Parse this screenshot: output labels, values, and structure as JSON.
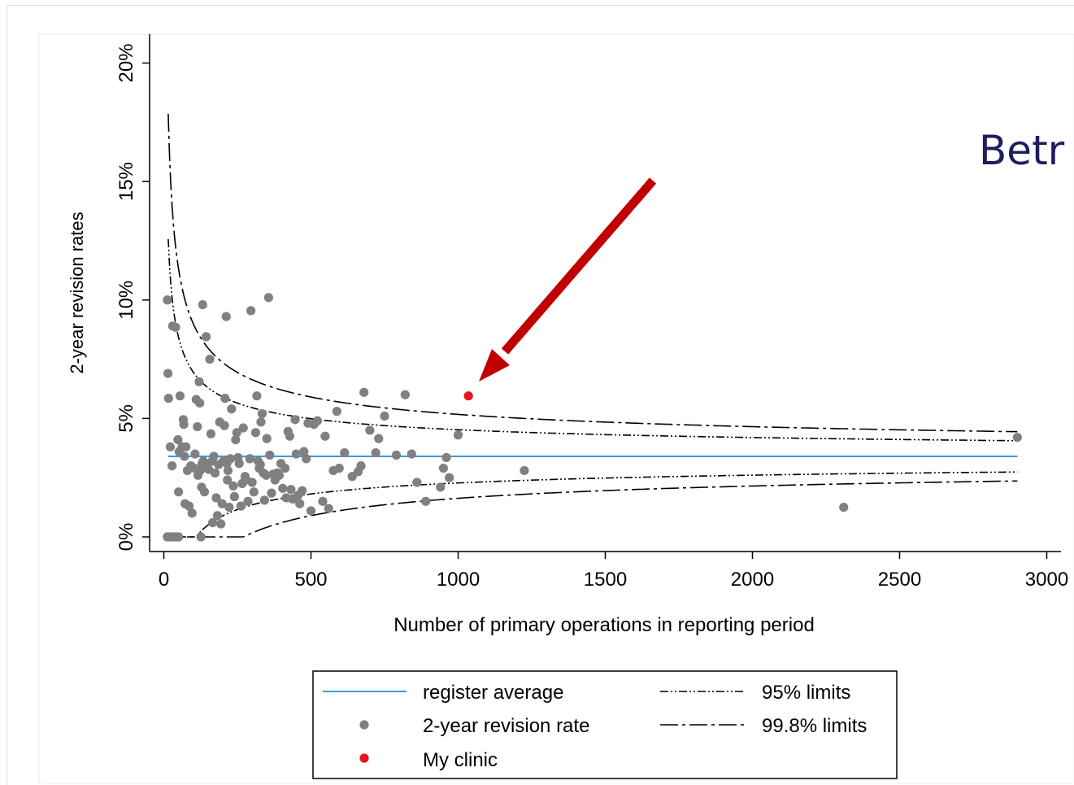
{
  "slide": {
    "title_fragment": "Betr"
  },
  "chart_data": {
    "type": "scatter",
    "title": "",
    "xlabel": "Number of primary operations in reporting period",
    "ylabel": "2-year revision rates",
    "xlim": [
      0,
      3000
    ],
    "ylim": [
      0,
      20
    ],
    "x_ticks": [
      0,
      500,
      1000,
      1500,
      2000,
      2500,
      3000
    ],
    "x_tick_labels": [
      "0",
      "500",
      "1000",
      "1500",
      "2000",
      "2500",
      "3000"
    ],
    "y_ticks": [
      0,
      5,
      10,
      15,
      20
    ],
    "y_tick_labels": [
      "0%",
      "5%",
      "10%",
      "15%",
      "20%"
    ],
    "grid": false,
    "legend_position": "bottom",
    "register_average": 3.4,
    "colors": {
      "register_average": "#1f8ad6",
      "revision_rate": "#808080",
      "my_clinic": "#e8141b",
      "arrow": "#c00000",
      "limits": "#000000"
    },
    "legend": [
      {
        "key": "register_average",
        "label": "register average"
      },
      {
        "key": "limits_95",
        "label": "95% limits"
      },
      {
        "key": "revision_rate",
        "label": "2-year revision rate"
      },
      {
        "key": "limits_998",
        "label": "99.8% limits"
      },
      {
        "key": "my_clinic",
        "label": "My clinic"
      }
    ],
    "series": [
      {
        "name": "2-year revision rate",
        "points": [
          [
            12,
            10.0
          ],
          [
            14,
            6.9
          ],
          [
            16,
            5.85
          ],
          [
            12,
            0.0
          ],
          [
            20,
            0.0
          ],
          [
            28,
            0.0
          ],
          [
            36,
            0.0
          ],
          [
            44,
            0.0
          ],
          [
            50,
            0.0
          ],
          [
            22,
            3.8
          ],
          [
            28,
            3.0
          ],
          [
            30,
            8.9
          ],
          [
            40,
            8.85
          ],
          [
            48,
            4.1
          ],
          [
            52,
            3.6
          ],
          [
            55,
            5.95
          ],
          [
            50,
            1.9
          ],
          [
            62,
            3.8
          ],
          [
            66,
            4.95
          ],
          [
            68,
            4.75
          ],
          [
            70,
            3.4
          ],
          [
            72,
            1.4
          ],
          [
            75,
            3.8
          ],
          [
            80,
            2.8
          ],
          [
            86,
            1.3
          ],
          [
            92,
            3.0
          ],
          [
            96,
            1.0
          ],
          [
            104,
            2.9
          ],
          [
            106,
            3.5
          ],
          [
            110,
            5.8
          ],
          [
            114,
            4.65
          ],
          [
            116,
            2.6
          ],
          [
            120,
            6.55
          ],
          [
            122,
            5.65
          ],
          [
            124,
            2.8
          ],
          [
            126,
            0.0
          ],
          [
            128,
            2.1
          ],
          [
            130,
            3.1
          ],
          [
            132,
            9.8
          ],
          [
            134,
            3.2
          ],
          [
            138,
            1.9
          ],
          [
            140,
            3.0
          ],
          [
            144,
            8.45
          ],
          [
            148,
            3.0
          ],
          [
            152,
            2.85
          ],
          [
            156,
            7.5
          ],
          [
            160,
            4.35
          ],
          [
            164,
            3.2
          ],
          [
            166,
            0.6
          ],
          [
            170,
            3.4
          ],
          [
            174,
            2.7
          ],
          [
            178,
            1.65
          ],
          [
            182,
            0.9
          ],
          [
            186,
            3.05
          ],
          [
            190,
            4.85
          ],
          [
            194,
            0.55
          ],
          [
            198,
            1.4
          ],
          [
            202,
            3.2
          ],
          [
            206,
            4.7
          ],
          [
            208,
            5.85
          ],
          [
            212,
            9.3
          ],
          [
            214,
            3.1
          ],
          [
            216,
            2.4
          ],
          [
            218,
            2.8
          ],
          [
            222,
            1.25
          ],
          [
            226,
            3.3
          ],
          [
            230,
            5.4
          ],
          [
            236,
            2.15
          ],
          [
            240,
            1.7
          ],
          [
            244,
            4.1
          ],
          [
            248,
            4.4
          ],
          [
            252,
            3.35
          ],
          [
            256,
            3.1
          ],
          [
            262,
            1.3
          ],
          [
            266,
            2.25
          ],
          [
            270,
            4.6
          ],
          [
            276,
            2.55
          ],
          [
            280,
            2.4
          ],
          [
            286,
            1.5
          ],
          [
            292,
            3.3
          ],
          [
            296,
            9.55
          ],
          [
            300,
            2.3
          ],
          [
            306,
            1.9
          ],
          [
            312,
            4.4
          ],
          [
            316,
            5.95
          ],
          [
            320,
            3.2
          ],
          [
            324,
            2.9
          ],
          [
            328,
            3.05
          ],
          [
            330,
            4.85
          ],
          [
            334,
            5.2
          ],
          [
            338,
            2.7
          ],
          [
            342,
            1.55
          ],
          [
            348,
            2.6
          ],
          [
            350,
            4.15
          ],
          [
            356,
            10.1
          ],
          [
            360,
            3.45
          ],
          [
            366,
            1.85
          ],
          [
            372,
            2.65
          ],
          [
            378,
            2.4
          ],
          [
            386,
            2.7
          ],
          [
            392,
            2.6
          ],
          [
            398,
            3.1
          ],
          [
            404,
            2.05
          ],
          [
            412,
            2.9
          ],
          [
            416,
            1.65
          ],
          [
            422,
            4.45
          ],
          [
            428,
            4.25
          ],
          [
            432,
            2.0
          ],
          [
            438,
            1.6
          ],
          [
            446,
            4.95
          ],
          [
            450,
            3.5
          ],
          [
            456,
            1.75
          ],
          [
            462,
            1.4
          ],
          [
            470,
            1.95
          ],
          [
            476,
            3.6
          ],
          [
            484,
            3.3
          ],
          [
            490,
            4.8
          ],
          [
            500,
            1.1
          ],
          [
            510,
            4.75
          ],
          [
            522,
            4.9
          ],
          [
            540,
            1.5
          ],
          [
            548,
            4.25
          ],
          [
            560,
            1.2
          ],
          [
            576,
            2.8
          ],
          [
            588,
            5.3
          ],
          [
            596,
            2.9
          ],
          [
            614,
            3.55
          ],
          [
            640,
            2.55
          ],
          [
            660,
            2.75
          ],
          [
            670,
            3.0
          ],
          [
            680,
            6.1
          ],
          [
            700,
            4.5
          ],
          [
            720,
            3.55
          ],
          [
            730,
            4.15
          ],
          [
            750,
            5.1
          ],
          [
            790,
            3.45
          ],
          [
            820,
            6.0
          ],
          [
            842,
            3.5
          ],
          [
            860,
            2.3
          ],
          [
            890,
            1.5
          ],
          [
            940,
            2.1
          ],
          [
            950,
            2.9
          ],
          [
            960,
            3.35
          ],
          [
            970,
            2.5
          ],
          [
            1000,
            4.3
          ],
          [
            1225,
            2.8
          ],
          [
            2310,
            1.25
          ],
          [
            2900,
            4.2
          ]
        ]
      },
      {
        "name": "My clinic",
        "points": [
          [
            1035,
            5.95
          ]
        ]
      }
    ],
    "control_limits": {
      "p": 0.034,
      "z95": 1.96,
      "z998": 3.09,
      "n_range": [
        15,
        2900
      ]
    }
  }
}
